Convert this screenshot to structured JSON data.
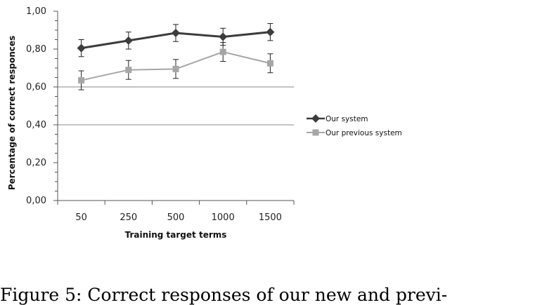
{
  "chart_data": {
    "type": "line",
    "categories": [
      "50",
      "250",
      "500",
      "1000",
      "1500"
    ],
    "series": [
      {
        "name": "Our system",
        "values": [
          0.805,
          0.845,
          0.885,
          0.865,
          0.89
        ],
        "error": [
          0.045,
          0.045,
          0.045,
          0.045,
          0.045
        ],
        "color": "#3c3c3c",
        "marker": "diamond"
      },
      {
        "name": "Our previous system",
        "values": [
          0.635,
          0.69,
          0.695,
          0.785,
          0.725
        ],
        "error": [
          0.05,
          0.05,
          0.05,
          0.05,
          0.05
        ],
        "color": "#a6a6a6",
        "marker": "square"
      }
    ],
    "xlabel": "Training target terms",
    "ylabel": "Percentage of correct responces",
    "ylim": [
      0,
      1
    ],
    "yticks": [
      "0,00",
      "0,20",
      "0,40",
      "0,60",
      "0,80",
      "1,00"
    ],
    "gridlines": [
      0.4,
      0.6
    ],
    "legend_position": "right"
  },
  "caption": "Figure 5: Correct responses of our new and previ-"
}
